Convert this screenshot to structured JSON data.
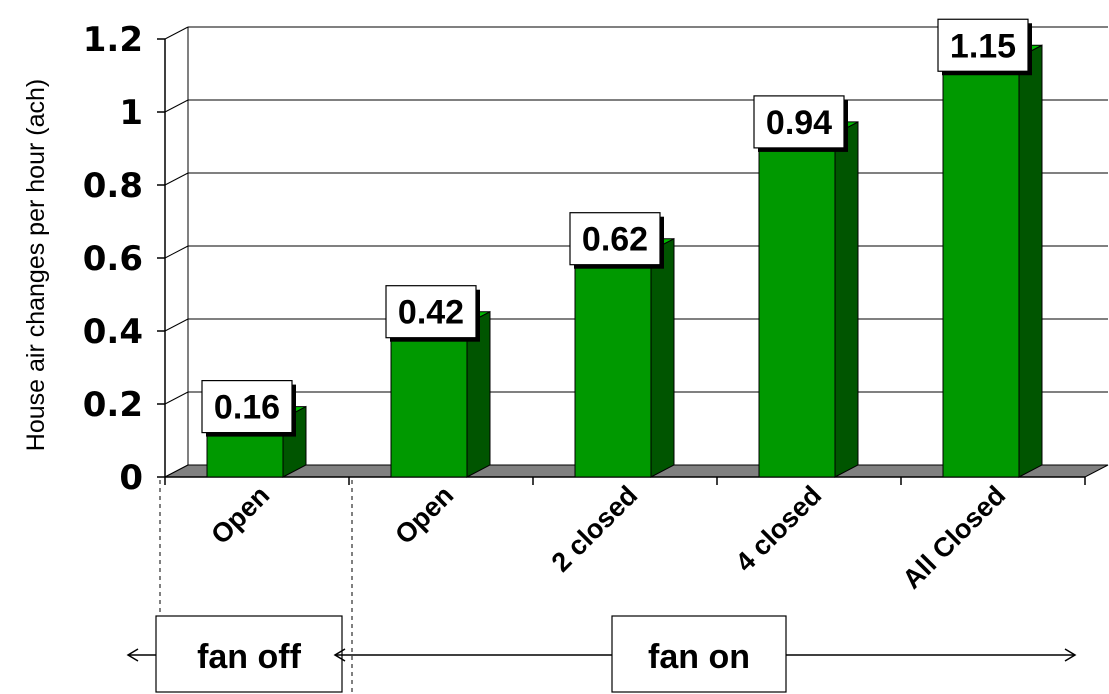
{
  "chart_data": {
    "type": "bar",
    "title": "",
    "xlabel": "",
    "ylabel": "House air changes per hour (ach)",
    "categories": [
      "Open",
      "Open",
      "2 closed",
      "4 closed",
      "All Closed"
    ],
    "values": [
      0.16,
      0.42,
      0.62,
      0.94,
      1.15
    ],
    "data_labels": [
      "0.16",
      "0.42",
      "0.62",
      "0.94",
      "1.15"
    ],
    "ylim": [
      0,
      1.2
    ],
    "yticks": [
      0,
      0.2,
      0.4,
      0.6,
      0.8,
      1,
      1.2
    ],
    "ytick_labels": [
      "0",
      "0.2",
      "0.4",
      "0.6",
      "0.8",
      "1",
      "1.2"
    ],
    "grid": true,
    "legend": "none",
    "three_d": true,
    "groups": [
      {
        "label": "fan off",
        "categories": [
          "Open"
        ]
      },
      {
        "label": "fan on",
        "categories": [
          "Open",
          "2 closed",
          "4 closed",
          "All Closed"
        ]
      }
    ],
    "colors": {
      "bar_front": "#009900",
      "bar_side": "#005500",
      "bar_top": "#00bb00",
      "floor": "#808080",
      "grid": "#000000"
    }
  }
}
